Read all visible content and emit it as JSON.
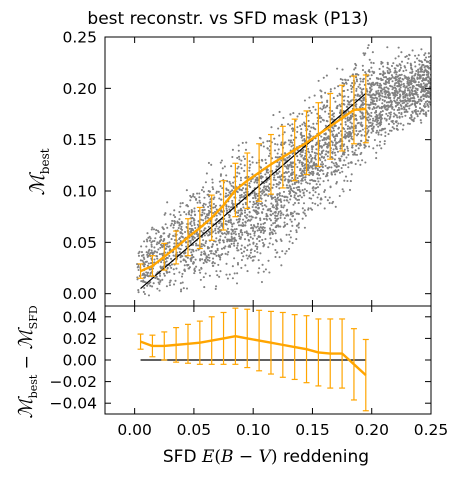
{
  "chart_data": {
    "type": "scatter",
    "title": "best reconstr. vs SFD mask (P13)",
    "xlabel": {
      "prefix": "SFD ",
      "math_italic_E": "E",
      "math_open": "(",
      "math_italic_B": "B",
      "math_minus": " − ",
      "math_italic_V": "V",
      "math_close": ")",
      "suffix": " reddening"
    },
    "xlim": [
      -0.025,
      0.25
    ],
    "xticks": [
      "0.00",
      "0.05",
      "0.10",
      "0.15",
      "0.20",
      "0.25"
    ],
    "xtick_values": [
      0.0,
      0.05,
      0.1,
      0.15,
      0.2,
      0.25
    ],
    "colors": {
      "scatter": "#808080",
      "binned": "#FFA500",
      "reference": "#000000",
      "frame": "#000000"
    },
    "panels": [
      {
        "name": "main",
        "ylabel": {
          "symbol": "ℳ",
          "subscript": "best"
        },
        "ylim": [
          -0.012,
          0.25
        ],
        "yticks": [
          "0.00",
          "0.05",
          "0.10",
          "0.15",
          "0.20",
          "0.25"
        ],
        "ytick_values": [
          0.0,
          0.05,
          0.1,
          0.15,
          0.2,
          0.25
        ],
        "scatter_band": {
          "x": [
            0.002,
            0.02,
            0.04,
            0.06,
            0.08,
            0.1,
            0.12,
            0.14,
            0.16,
            0.18,
            0.2,
            0.22,
            0.25
          ],
          "lower": [
            -0.01,
            -0.012,
            -0.012,
            -0.012,
            -0.008,
            0.0,
            0.015,
            0.035,
            0.06,
            0.09,
            0.12,
            0.14,
            0.16
          ],
          "upper": [
            0.06,
            0.085,
            0.11,
            0.135,
            0.155,
            0.17,
            0.185,
            0.205,
            0.225,
            0.245,
            0.25,
            0.25,
            0.25
          ]
        },
        "reference_line": {
          "x": [
            0.005,
            0.195
          ],
          "y": [
            0.005,
            0.195
          ]
        },
        "series": [
          {
            "x": [
              0.005,
              0.015,
              0.025,
              0.035,
              0.045,
              0.055,
              0.065,
              0.075,
              0.085,
              0.095,
              0.105,
              0.115,
              0.125,
              0.135,
              0.145,
              0.155,
              0.165,
              0.175,
              0.185,
              0.195
            ],
            "y": [
              0.022,
              0.027,
              0.036,
              0.045,
              0.055,
              0.064,
              0.074,
              0.086,
              0.101,
              0.11,
              0.118,
              0.126,
              0.133,
              0.14,
              0.147,
              0.155,
              0.163,
              0.171,
              0.179,
              0.18
            ],
            "yerr": [
              0.007,
              0.01,
              0.013,
              0.016,
              0.018,
              0.02,
              0.022,
              0.024,
              0.026,
              0.027,
              0.028,
              0.029,
              0.03,
              0.03,
              0.031,
              0.031,
              0.032,
              0.032,
              0.033,
              0.033
            ]
          }
        ]
      },
      {
        "name": "residual",
        "ylabel": {
          "symbol_a": "ℳ",
          "sub_a": "best",
          "minus": " − ",
          "symbol_b": "ℳ",
          "sub_b": "SFD"
        },
        "ylim": [
          -0.05,
          0.05
        ],
        "yticks": [
          "0.04",
          "0.02",
          "0.00",
          "−0.02",
          "−0.04"
        ],
        "ytick_values": [
          0.04,
          0.02,
          0.0,
          -0.02,
          -0.04
        ],
        "reference_line": {
          "x": [
            0.005,
            0.195
          ],
          "y": [
            0.0,
            0.0
          ]
        },
        "series": [
          {
            "x": [
              0.005,
              0.015,
              0.025,
              0.035,
              0.045,
              0.055,
              0.065,
              0.075,
              0.085,
              0.095,
              0.105,
              0.115,
              0.125,
              0.135,
              0.145,
              0.155,
              0.165,
              0.175,
              0.185,
              0.195
            ],
            "y": [
              0.017,
              0.013,
              0.013,
              0.014,
              0.015,
              0.016,
              0.018,
              0.02,
              0.022,
              0.02,
              0.018,
              0.016,
              0.014,
              0.012,
              0.01,
              0.007,
              0.006,
              0.006,
              -0.004,
              -0.014
            ],
            "yerr": [
              0.007,
              0.01,
              0.013,
              0.016,
              0.018,
              0.02,
              0.022,
              0.024,
              0.026,
              0.027,
              0.028,
              0.029,
              0.03,
              0.03,
              0.031,
              0.031,
              0.032,
              0.032,
              0.033,
              0.033
            ]
          }
        ]
      }
    ]
  }
}
